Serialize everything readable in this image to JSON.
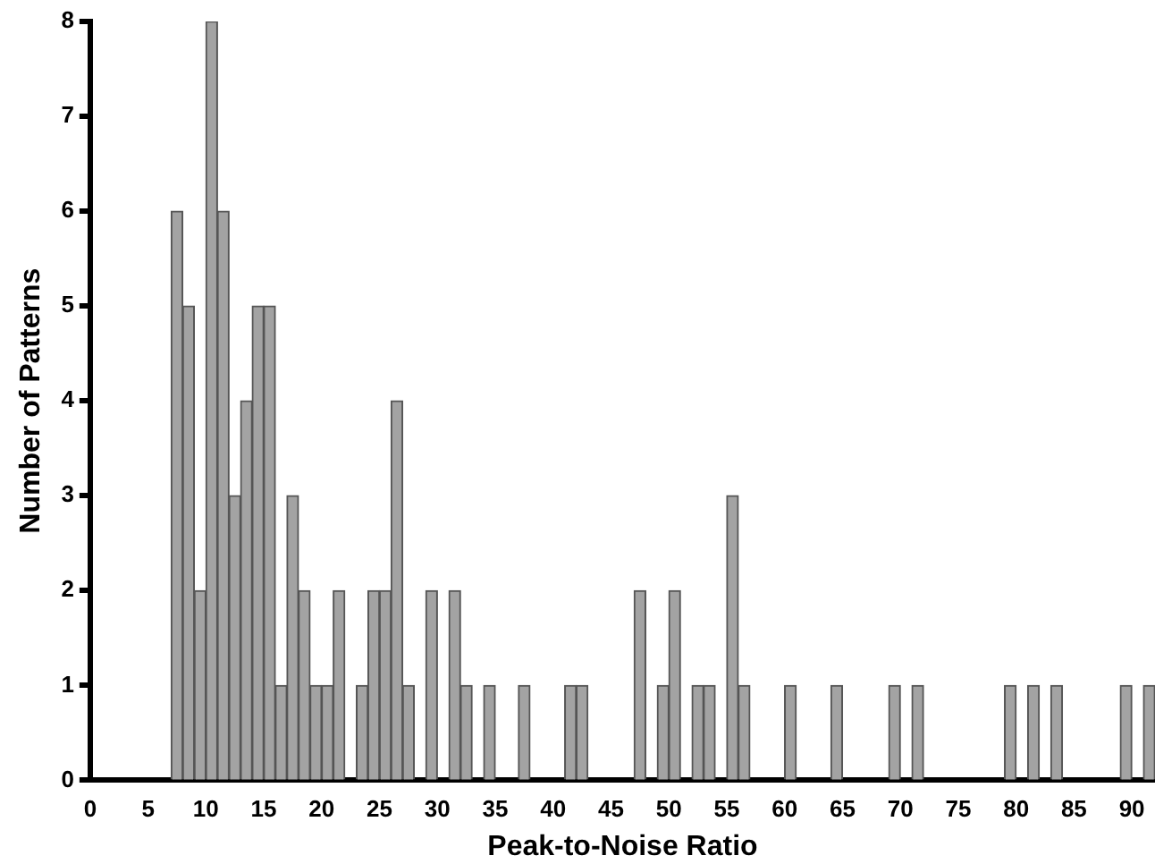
{
  "chart_data": {
    "type": "histogram",
    "xlabel": "Peak-to-Noise Ratio",
    "ylabel": "Number of Patterns",
    "bins": [
      7,
      8,
      9,
      10,
      11,
      12,
      13,
      14,
      15,
      16,
      17,
      18,
      19,
      20,
      21,
      22,
      23,
      24,
      25,
      26,
      27,
      28,
      29,
      30,
      31,
      32,
      33,
      34,
      35,
      36,
      37,
      38,
      39,
      40,
      41,
      42,
      43,
      44,
      45,
      46,
      47,
      48,
      49,
      50,
      51,
      52,
      53,
      54,
      55,
      56,
      57,
      58,
      59,
      60,
      61,
      62,
      63,
      64,
      65,
      66,
      67,
      68,
      69,
      70,
      71,
      72,
      73,
      74,
      75,
      76,
      77,
      78,
      79,
      80,
      81,
      82,
      83,
      84,
      85,
      86,
      87,
      88,
      89,
      90,
      91,
      92
    ],
    "values": [
      6,
      5,
      2,
      8,
      6,
      3,
      4,
      5,
      5,
      1,
      3,
      2,
      1,
      1,
      2,
      0,
      1,
      2,
      2,
      4,
      1,
      0,
      2,
      0,
      2,
      1,
      0,
      1,
      0,
      0,
      1,
      0,
      0,
      0,
      1,
      1,
      0,
      0,
      0,
      0,
      2,
      0,
      1,
      2,
      0,
      1,
      1,
      0,
      3,
      1,
      0,
      0,
      0,
      1,
      0,
      0,
      0,
      1,
      0,
      0,
      0,
      0,
      1,
      0,
      1,
      0,
      0,
      0,
      0,
      0,
      0,
      0,
      1,
      0,
      1,
      0,
      1,
      0,
      0,
      0,
      0,
      0,
      1,
      0,
      1
    ],
    "color": "#a3a3a3",
    "xlim": [
      0,
      92
    ],
    "xticks": [
      0,
      5,
      10,
      15,
      20,
      25,
      30,
      35,
      40,
      45,
      50,
      55,
      60,
      65,
      70,
      75,
      80,
      85,
      90
    ],
    "ylim": [
      0,
      8
    ],
    "yticks": [
      0,
      1,
      2,
      3,
      4,
      5,
      6,
      7,
      8
    ],
    "grid": false,
    "legend": false
  }
}
